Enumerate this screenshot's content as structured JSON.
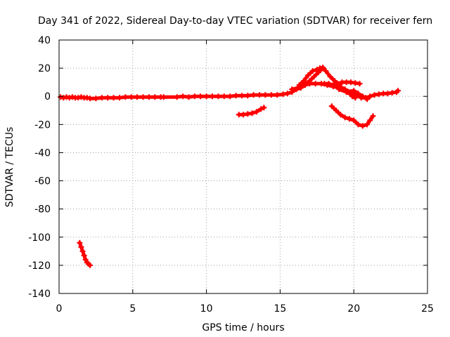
{
  "chart_data": {
    "type": "scatter",
    "title": "Day 341 of 2022, Sidereal Day-to-day VTEC variation (SDTVAR) for receiver fern",
    "xlabel": "GPS time / hours",
    "ylabel": "SDTVAR / TECUs",
    "xlim": [
      0,
      25
    ],
    "ylim": [
      -140,
      40
    ],
    "xticks": [
      0,
      5,
      10,
      15,
      20,
      25
    ],
    "yticks": [
      -140,
      -120,
      -100,
      -80,
      -60,
      -40,
      -20,
      0,
      20,
      40
    ],
    "xtick_labels": [
      "0",
      "5",
      "10",
      "15",
      "20",
      "25"
    ],
    "ytick_labels": [
      "-140",
      "-120",
      "-100",
      "-80",
      "-60",
      "-40",
      "-20",
      "0",
      "20",
      "40"
    ],
    "grid": true,
    "marker": "+",
    "color": "#ff0000",
    "series": [
      {
        "name": "main-band",
        "points": [
          [
            0.1,
            -0.5
          ],
          [
            0.3,
            -1
          ],
          [
            0.5,
            -0.5
          ],
          [
            0.7,
            -1
          ],
          [
            0.9,
            -0.5
          ],
          [
            1.1,
            -1
          ],
          [
            1.3,
            -1
          ],
          [
            1.5,
            -0.5
          ],
          [
            1.7,
            -1
          ],
          [
            1.9,
            -1
          ],
          [
            2.1,
            -1.5
          ],
          [
            2.5,
            -1.5
          ],
          [
            2.9,
            -1
          ],
          [
            3.3,
            -1
          ],
          [
            3.7,
            -1
          ],
          [
            4.1,
            -1
          ],
          [
            4.5,
            -0.5
          ],
          [
            4.9,
            -0.5
          ],
          [
            5.3,
            -0.5
          ],
          [
            5.7,
            -0.5
          ],
          [
            6.1,
            -0.5
          ],
          [
            6.5,
            -0.5
          ],
          [
            6.9,
            -0.5
          ],
          [
            7.1,
            -0.5
          ],
          [
            8.0,
            -0.5
          ],
          [
            8.4,
            0
          ],
          [
            8.8,
            -0.5
          ],
          [
            9.2,
            0
          ],
          [
            9.6,
            0
          ],
          [
            10.0,
            0
          ],
          [
            10.4,
            0
          ],
          [
            10.8,
            0
          ],
          [
            11.2,
            0
          ],
          [
            11.6,
            0
          ],
          [
            12.0,
            0.5
          ],
          [
            12.4,
            0.5
          ],
          [
            12.8,
            0.5
          ],
          [
            13.2,
            1
          ],
          [
            13.6,
            1
          ],
          [
            14.0,
            1
          ],
          [
            14.4,
            1
          ],
          [
            14.8,
            1
          ],
          [
            15.2,
            1.5
          ],
          [
            15.5,
            2
          ],
          [
            15.8,
            3
          ],
          [
            16.1,
            5
          ],
          [
            16.4,
            6
          ],
          [
            16.7,
            8
          ],
          [
            17.0,
            9
          ],
          [
            17.4,
            9
          ],
          [
            17.8,
            9
          ],
          [
            18.2,
            8
          ],
          [
            18.6,
            7
          ],
          [
            19.0,
            6
          ],
          [
            19.4,
            5
          ],
          [
            19.8,
            3
          ],
          [
            20.2,
            1
          ],
          [
            20.5,
            -1
          ],
          [
            20.8,
            -1
          ],
          [
            21.1,
            0
          ],
          [
            21.4,
            1
          ],
          [
            21.7,
            1.5
          ],
          [
            22.0,
            2
          ],
          [
            22.3,
            2
          ],
          [
            22.6,
            2.5
          ],
          [
            22.9,
            3
          ],
          [
            23.0,
            4
          ]
        ]
      },
      {
        "name": "upper-arc",
        "points": [
          [
            15.8,
            5
          ],
          [
            16.2,
            6
          ],
          [
            16.6,
            8
          ],
          [
            17.0,
            11
          ],
          [
            17.3,
            14
          ],
          [
            17.6,
            17
          ],
          [
            17.9,
            20
          ],
          [
            18.1,
            18
          ],
          [
            18.4,
            14
          ],
          [
            18.7,
            11
          ],
          [
            19.0,
            8
          ],
          [
            19.3,
            5
          ],
          [
            19.6,
            3
          ],
          [
            19.9,
            0
          ],
          [
            20.1,
            -1
          ]
        ]
      },
      {
        "name": "crest-arc",
        "points": [
          [
            16.3,
            8
          ],
          [
            16.6,
            11
          ],
          [
            16.9,
            15
          ],
          [
            17.2,
            18
          ],
          [
            17.5,
            19
          ],
          [
            17.7,
            20
          ],
          [
            17.9,
            20.5
          ]
        ]
      },
      {
        "name": "right-hump",
        "points": [
          [
            18.0,
            9
          ],
          [
            18.3,
            9
          ],
          [
            18.6,
            8
          ],
          [
            18.9,
            9
          ],
          [
            19.2,
            10
          ],
          [
            19.5,
            10
          ],
          [
            19.8,
            10
          ],
          [
            20.1,
            9.5
          ],
          [
            20.4,
            9
          ]
        ]
      },
      {
        "name": "mid-low-band",
        "points": [
          [
            12.2,
            -13
          ],
          [
            12.5,
            -13
          ],
          [
            12.8,
            -12.5
          ],
          [
            13.1,
            -12
          ],
          [
            13.4,
            -11
          ],
          [
            13.7,
            -9
          ],
          [
            13.9,
            -8
          ]
        ]
      },
      {
        "name": "right-dip",
        "points": [
          [
            18.5,
            -7
          ],
          [
            18.8,
            -10
          ],
          [
            19.1,
            -13
          ],
          [
            19.4,
            -15
          ],
          [
            19.7,
            -16
          ],
          [
            20.0,
            -17
          ],
          [
            20.3,
            -20
          ],
          [
            20.6,
            -21
          ],
          [
            20.9,
            -20
          ],
          [
            21.1,
            -17
          ],
          [
            21.3,
            -14
          ]
        ]
      },
      {
        "name": "crossing-arc",
        "points": [
          [
            19.0,
            5
          ],
          [
            19.5,
            3
          ],
          [
            20.0,
            4
          ],
          [
            20.3,
            2
          ],
          [
            20.6,
            0
          ],
          [
            20.9,
            -2
          ]
        ]
      },
      {
        "name": "far-negative",
        "points": [
          [
            1.4,
            -104
          ],
          [
            1.5,
            -107
          ],
          [
            1.6,
            -110
          ],
          [
            1.7,
            -113
          ],
          [
            1.8,
            -116
          ],
          [
            1.9,
            -118
          ],
          [
            2.0,
            -119
          ],
          [
            2.1,
            -120
          ]
        ]
      }
    ]
  }
}
